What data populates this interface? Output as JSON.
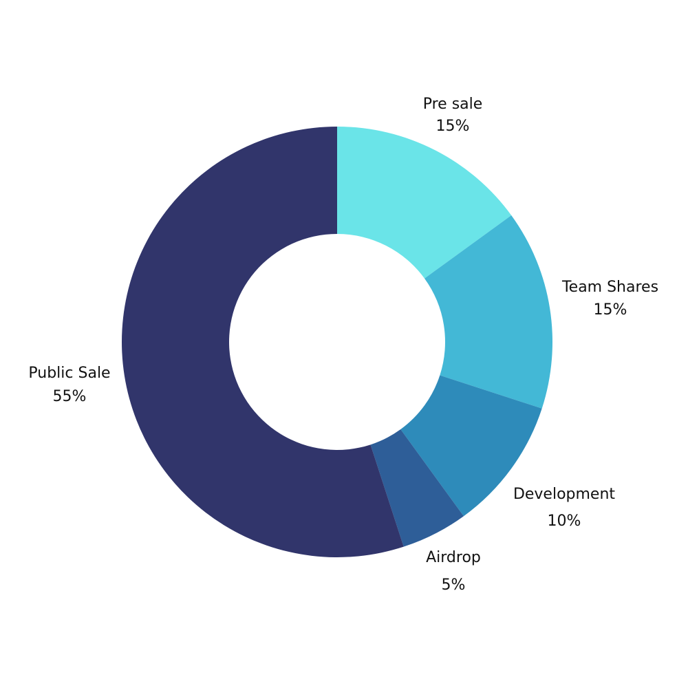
{
  "chart_data": {
    "type": "donut",
    "categories": [
      "Pre sale",
      "Team Shares",
      "Development",
      "Airdrop",
      "Public Sale"
    ],
    "values": [
      15,
      15,
      10,
      5,
      55
    ],
    "value_labels": [
      "15%",
      "15%",
      "10%",
      "5%",
      "55%"
    ],
    "colors": [
      "#6ae4e8",
      "#43b8d6",
      "#2e8bba",
      "#2e5e98",
      "#31356b"
    ]
  }
}
